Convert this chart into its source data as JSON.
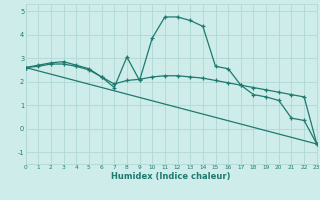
{
  "background_color": "#ceecea",
  "grid_color": "#b0d8d4",
  "line_color": "#1e7a6e",
  "xlabel": "Humidex (Indice chaleur)",
  "xlim": [
    0,
    23
  ],
  "ylim": [
    -1.5,
    5.3
  ],
  "yticks": [
    -1,
    0,
    1,
    2,
    3,
    4,
    5
  ],
  "xticks": [
    0,
    1,
    2,
    3,
    4,
    5,
    6,
    7,
    8,
    9,
    10,
    11,
    12,
    13,
    14,
    15,
    16,
    17,
    18,
    19,
    20,
    21,
    22,
    23
  ],
  "series": [
    {
      "x": [
        0,
        1,
        2,
        3,
        4,
        5,
        6,
        7,
        8,
        9,
        10,
        11,
        12,
        13,
        14,
        15,
        16,
        17,
        18,
        19,
        20,
        21,
        22,
        23
      ],
      "y": [
        2.6,
        2.7,
        2.8,
        2.85,
        2.7,
        2.55,
        2.2,
        1.75,
        3.05,
        2.05,
        3.85,
        4.75,
        4.75,
        4.6,
        4.35,
        2.65,
        2.55,
        1.85,
        1.45,
        1.35,
        1.2,
        0.45,
        0.35,
        -0.65
      ]
    },
    {
      "x": [
        0,
        1,
        2,
        3,
        4,
        5,
        6,
        7,
        8,
        9,
        10,
        11,
        12,
        13,
        14,
        15,
        16,
        17,
        18,
        19,
        20,
        21,
        22,
        23
      ],
      "y": [
        2.6,
        2.65,
        2.75,
        2.75,
        2.65,
        2.5,
        2.2,
        1.9,
        2.05,
        2.1,
        2.2,
        2.25,
        2.25,
        2.2,
        2.15,
        2.05,
        1.95,
        1.85,
        1.75,
        1.65,
        1.55,
        1.45,
        1.35,
        -0.65
      ]
    },
    {
      "x": [
        0,
        23
      ],
      "y": [
        2.6,
        -0.65
      ]
    }
  ]
}
